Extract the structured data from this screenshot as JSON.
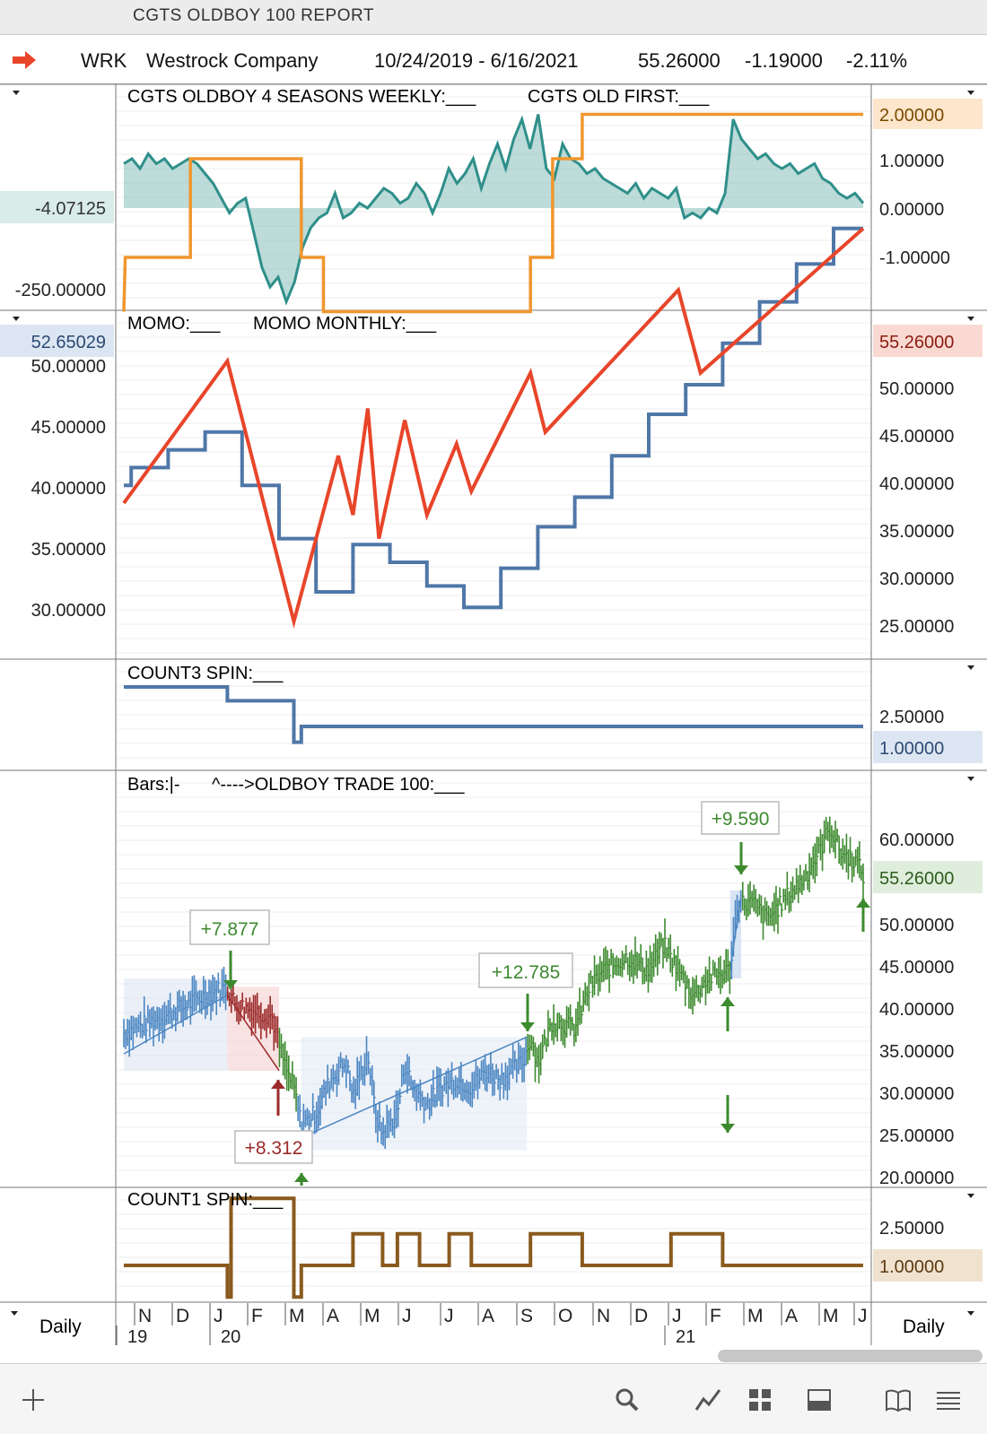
{
  "window": {
    "title": "CGTS OLDBOY 100  REPORT"
  },
  "info": {
    "symbol": "WRK",
    "company": "Westrock Company",
    "date_range": "10/24/2019 - 6/16/2021",
    "last": "55.26000",
    "change": "-1.19000",
    "change_pct": "-2.11%"
  },
  "colors": {
    "teal": "#2f8f8a",
    "orange": "#f0962e",
    "red": "#e8452a",
    "blue": "#4f77a8",
    "brown": "#8a5a1e",
    "green": "#3c8a2e",
    "darkred": "#9b2a2a",
    "barblue": "#4b86c2"
  },
  "footer": {
    "period_left": "Daily",
    "period_right": "Daily"
  },
  "chart_data": [
    {
      "type": "line",
      "panel": "seasons",
      "legend": [
        "CGTS OLDBOY 4 SEASONS WEEKLY:___",
        "CGTS OLD FIRST:___"
      ],
      "left_labels": [
        "-4.07125",
        "-250.00000"
      ],
      "right_ticks": [
        "1.00000",
        "0.00000",
        "-1.00000"
      ],
      "right_value": "2.00000",
      "ylim": [
        -2.1,
        2.0
      ],
      "series": [
        {
          "name": "CGTS OLDBOY 4 SEASONS WEEKLY",
          "color": "#2f8f8a",
          "fill": true,
          "values": [
            0.9,
            1.0,
            0.8,
            1.1,
            0.9,
            1.0,
            0.8,
            0.9,
            1.0,
            0.9,
            0.7,
            0.5,
            0.2,
            -0.1,
            0.1,
            0.2,
            -0.5,
            -1.2,
            -1.6,
            -1.4,
            -1.9,
            -1.5,
            -0.8,
            -0.4,
            -0.2,
            -0.1,
            0.3,
            -0.2,
            -0.1,
            0.1,
            0.0,
            0.2,
            0.4,
            0.3,
            0.1,
            0.2,
            0.5,
            0.3,
            -0.1,
            0.3,
            0.8,
            0.5,
            0.7,
            1.0,
            0.4,
            0.9,
            1.3,
            0.8,
            1.4,
            1.8,
            1.2,
            1.9,
            0.8,
            0.6,
            1.3,
            1.0,
            0.9,
            0.7,
            0.8,
            0.6,
            0.5,
            0.4,
            0.3,
            0.5,
            0.2,
            0.4,
            0.3,
            0.2,
            0.4,
            -0.2,
            -0.1,
            -0.2,
            0.0,
            -0.1,
            0.3,
            1.8,
            1.4,
            1.2,
            1.0,
            1.1,
            0.9,
            0.8,
            0.9,
            0.7,
            0.8,
            0.9,
            0.6,
            0.5,
            0.3,
            0.2,
            0.3,
            0.1
          ]
        },
        {
          "name": "CGTS OLD FIRST",
          "color": "#f0962e",
          "step": true,
          "steps": [
            [
              0,
              -2.1
            ],
            [
              0.2,
              -1.0
            ],
            [
              9,
              -1.0
            ],
            [
              9,
              1.0
            ],
            [
              24,
              1.0
            ],
            [
              24,
              -1.0
            ],
            [
              27,
              -1.0
            ],
            [
              27,
              -2.1
            ],
            [
              55,
              -2.1
            ],
            [
              55,
              -1.0
            ],
            [
              58,
              -1.0
            ],
            [
              58,
              1.0
            ],
            [
              62,
              1.0
            ],
            [
              62,
              1.9
            ],
            [
              100,
              1.9
            ]
          ]
        }
      ]
    },
    {
      "type": "line",
      "panel": "momo",
      "legend": [
        "MOMO:___",
        "MOMO MONTHLY:___"
      ],
      "left_ticks": [
        "50.00000",
        "45.00000",
        "40.00000",
        "35.00000",
        "30.00000"
      ],
      "left_value": "52.65029",
      "right_ticks": [
        "50.00000",
        "45.00000",
        "40.00000",
        "35.00000",
        "30.00000",
        "25.00000"
      ],
      "right_value": "55.26000",
      "series": [
        {
          "name": "MOMO",
          "color": "#e8452a",
          "points": [
            [
              0,
              32
            ],
            [
              14,
              44
            ],
            [
              23,
              22
            ],
            [
              29,
              36
            ],
            [
              31,
              31
            ],
            [
              33,
              40
            ],
            [
              34.5,
              29
            ],
            [
              38,
              39
            ],
            [
              41,
              31
            ],
            [
              45,
              37
            ],
            [
              47,
              33
            ],
            [
              55,
              43
            ],
            [
              57,
              38
            ],
            [
              75,
              50
            ],
            [
              78,
              43
            ],
            [
              100,
              55.2
            ]
          ]
        },
        {
          "name": "MOMO MONTHLY",
          "color": "#4f77a8",
          "step": true,
          "steps": [
            [
              0,
              33.5
            ],
            [
              1,
              33.5
            ],
            [
              1,
              35
            ],
            [
              6,
              35
            ],
            [
              6,
              36.5
            ],
            [
              11,
              36.5
            ],
            [
              11,
              38
            ],
            [
              16,
              38
            ],
            [
              16,
              33.5
            ],
            [
              21,
              33.5
            ],
            [
              21,
              29
            ],
            [
              26,
              29
            ],
            [
              26,
              24.5
            ],
            [
              31,
              24.5
            ],
            [
              31,
              28.5
            ],
            [
              36,
              28.5
            ],
            [
              36,
              27
            ],
            [
              41,
              27
            ],
            [
              41,
              25
            ],
            [
              46,
              25
            ],
            [
              46,
              23.2
            ],
            [
              51,
              23.2
            ],
            [
              51,
              26.5
            ],
            [
              56,
              26.5
            ],
            [
              56,
              30
            ],
            [
              61,
              30
            ],
            [
              61,
              32.5
            ],
            [
              66,
              32.5
            ],
            [
              66,
              36
            ],
            [
              71,
              36
            ],
            [
              71,
              39.5
            ],
            [
              76,
              39.5
            ],
            [
              76,
              42
            ],
            [
              81,
              42
            ],
            [
              81,
              45.5
            ],
            [
              86,
              45.5
            ],
            [
              86,
              49
            ],
            [
              91,
              49
            ],
            [
              91,
              52.2
            ],
            [
              96,
              52.2
            ],
            [
              96,
              55.2
            ],
            [
              100,
              55.2
            ]
          ]
        }
      ]
    },
    {
      "type": "line",
      "panel": "count3",
      "legend": [
        "COUNT3 SPIN:___"
      ],
      "right_ticks": [
        "2.50000"
      ],
      "right_value": "1.00000",
      "series": [
        {
          "name": "COUNT3 SPIN",
          "color": "#4f77a8",
          "step": true,
          "steps": [
            [
              0,
              3.0
            ],
            [
              14,
              3.0
            ],
            [
              14,
              2.3
            ],
            [
              23,
              2.3
            ],
            [
              23,
              0.2
            ],
            [
              24,
              0.2
            ],
            [
              24,
              1.0
            ],
            [
              100,
              1.0
            ]
          ]
        }
      ]
    },
    {
      "type": "bar",
      "panel": "bars",
      "legend": [
        "Bars:|-",
        "^---->OLDBOY TRADE 100:___"
      ],
      "right_ticks": [
        "60.00000",
        "50.00000",
        "45.00000",
        "40.00000",
        "35.00000",
        "30.00000",
        "25.00000",
        "20.00000"
      ],
      "right_value": "55.26000",
      "ylim": [
        18,
        66
      ],
      "price_path": [
        [
          0,
          36.5
        ],
        [
          4,
          38
        ],
        [
          8,
          39.5
        ],
        [
          11,
          41
        ],
        [
          14,
          42
        ],
        [
          15,
          40
        ],
        [
          18,
          39
        ],
        [
          20,
          38.5
        ],
        [
          21,
          35
        ],
        [
          22,
          32
        ],
        [
          23,
          30
        ],
        [
          24,
          25.5
        ],
        [
          26,
          27
        ],
        [
          28,
          31
        ],
        [
          30,
          33
        ],
        [
          31,
          29
        ],
        [
          33,
          34
        ],
        [
          34,
          27
        ],
        [
          35,
          24.5
        ],
        [
          37,
          27
        ],
        [
          38,
          33
        ],
        [
          39,
          30
        ],
        [
          41,
          28
        ],
        [
          43,
          30
        ],
        [
          45,
          31
        ],
        [
          47,
          30
        ],
        [
          49,
          32
        ],
        [
          51,
          31
        ],
        [
          54,
          33
        ],
        [
          55,
          36
        ],
        [
          56,
          33
        ],
        [
          58,
          38
        ],
        [
          61,
          37
        ],
        [
          63,
          42
        ],
        [
          65,
          44
        ],
        [
          68,
          45.5
        ],
        [
          71,
          44
        ],
        [
          73,
          47
        ],
        [
          75,
          44
        ],
        [
          77,
          41
        ],
        [
          79,
          43
        ],
        [
          82,
          44
        ],
        [
          83,
          52
        ],
        [
          85,
          52
        ],
        [
          87,
          50
        ],
        [
          90,
          53
        ],
        [
          92,
          55
        ],
        [
          94,
          58
        ],
        [
          95.5,
          61
        ],
        [
          97,
          58
        ],
        [
          99,
          57
        ],
        [
          100,
          55.3
        ]
      ],
      "trades": [
        {
          "label": "+7.877",
          "color": "green"
        },
        {
          "label": "+8.312",
          "color": "darkred"
        },
        {
          "label": "+12.785",
          "color": "green"
        },
        {
          "label": "+9.590",
          "color": "green"
        }
      ]
    },
    {
      "type": "line",
      "panel": "count1",
      "legend": [
        "COUNT1 SPIN:___"
      ],
      "right_ticks": [
        "2.50000"
      ],
      "right_value": "1.00000",
      "series": [
        {
          "name": "COUNT1 SPIN",
          "color": "#8a5a1e",
          "step": true,
          "steps": [
            [
              0,
              1.0
            ],
            [
              14,
              1.0
            ],
            [
              14,
              0.2
            ],
            [
              14.5,
              0.2
            ],
            [
              14.5,
              2.7
            ],
            [
              23,
              2.7
            ],
            [
              23,
              0.2
            ],
            [
              24,
              0.2
            ],
            [
              24,
              1.0
            ],
            [
              31,
              1.0
            ],
            [
              31,
              1.8
            ],
            [
              35,
              1.8
            ],
            [
              35,
              1.0
            ],
            [
              37,
              1.0
            ],
            [
              37,
              1.8
            ],
            [
              40,
              1.8
            ],
            [
              40,
              1.0
            ],
            [
              44,
              1.0
            ],
            [
              44,
              1.8
            ],
            [
              47,
              1.8
            ],
            [
              47,
              1.0
            ],
            [
              55,
              1.0
            ],
            [
              55,
              1.8
            ],
            [
              62,
              1.8
            ],
            [
              62,
              1.0
            ],
            [
              74,
              1.0
            ],
            [
              74,
              1.8
            ],
            [
              81,
              1.8
            ],
            [
              81,
              1.0
            ],
            [
              100,
              1.0
            ]
          ]
        }
      ]
    }
  ],
  "x_axis": {
    "months": [
      "N",
      "D",
      "J",
      "F",
      "M",
      "A",
      "M",
      "J",
      "J",
      "A",
      "S",
      "O",
      "N",
      "D",
      "J",
      "F",
      "M",
      "A",
      "M",
      "J"
    ],
    "years": [
      "19",
      "20",
      "21"
    ]
  }
}
